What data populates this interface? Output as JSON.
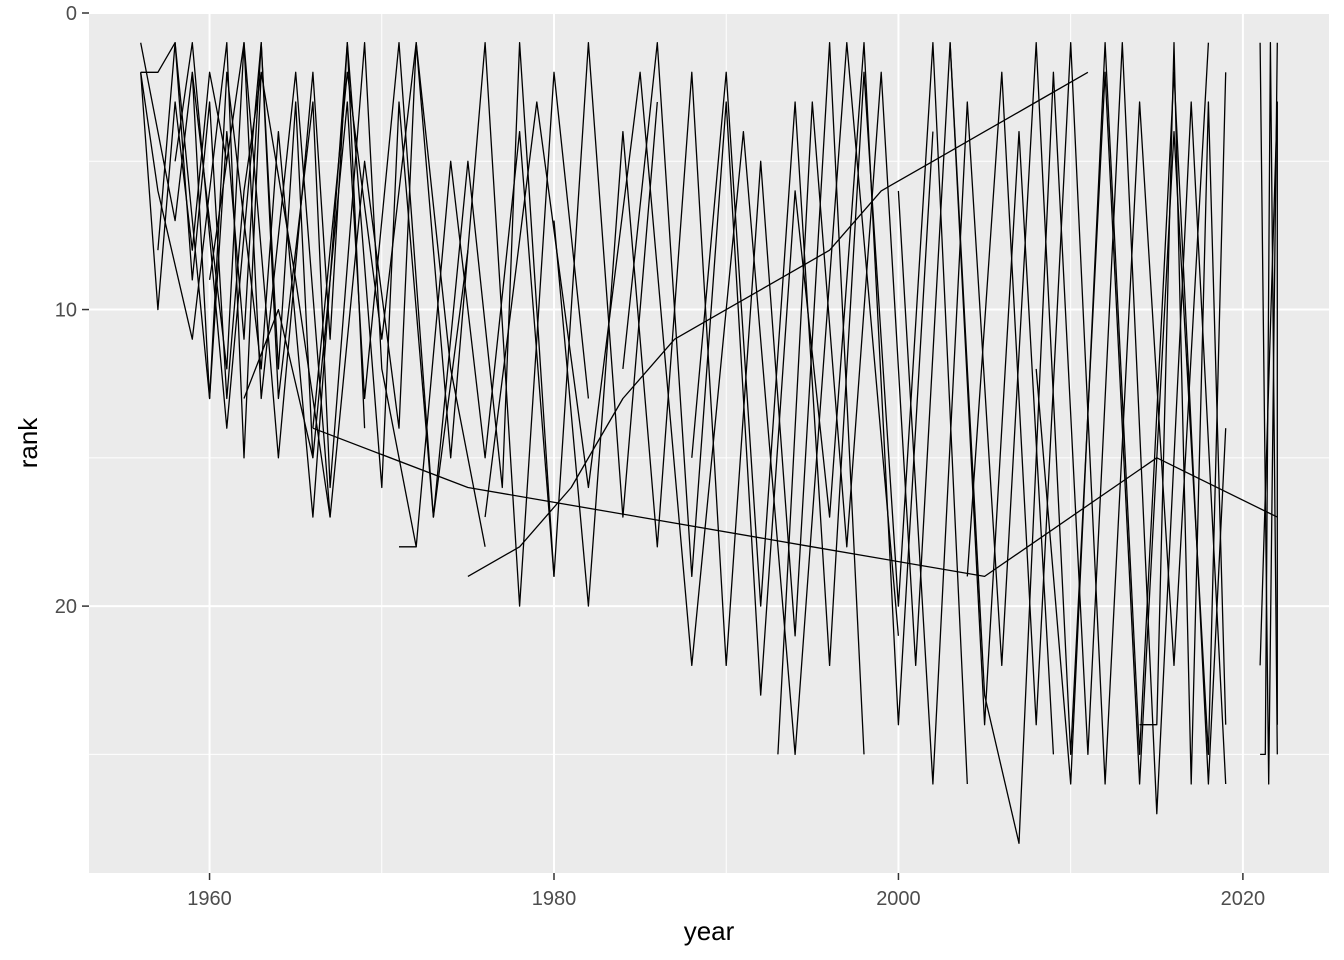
{
  "chart_data": {
    "type": "line",
    "title": "",
    "xlabel": "year",
    "ylabel": "rank",
    "xlim": [
      1953,
      2025
    ],
    "ylim": [
      0,
      29
    ],
    "y_reversed": true,
    "grid": true,
    "panel_background": "#ebebeb",
    "grid_color": "#ffffff",
    "line_color": "#000000",
    "x_ticks": [
      1960,
      1980,
      2000,
      2020
    ],
    "y_ticks": [
      0,
      10,
      20
    ],
    "x_tick_labels": [
      "1960",
      "1980",
      "2000",
      "2020"
    ],
    "y_tick_labels": [
      "0",
      "10",
      "20"
    ],
    "series": [
      {
        "x": [
          1956,
          1957,
          1958,
          1959,
          1960,
          1961
        ],
        "y": [
          2,
          10,
          3,
          8,
          2,
          5
        ]
      },
      {
        "x": [
          1956,
          1957,
          1958,
          1959,
          1960,
          1961,
          1962,
          1963
        ],
        "y": [
          2,
          2,
          1,
          9,
          3,
          13,
          6,
          2
        ]
      },
      {
        "x": [
          1956,
          1958,
          1959,
          1960,
          1961,
          1962,
          1963,
          1964,
          1965,
          1966
        ],
        "y": [
          1,
          7,
          2,
          13,
          4,
          11,
          1,
          12,
          3,
          15
        ]
      },
      {
        "x": [
          1956,
          1957,
          1959,
          1961,
          1962,
          1963,
          1965,
          1967
        ],
        "y": [
          2,
          6,
          11,
          1,
          15,
          2,
          9,
          17
        ]
      },
      {
        "x": [
          1957,
          1958,
          1960,
          1961,
          1963,
          1964,
          1966,
          1968,
          1969
        ],
        "y": [
          8,
          1,
          13,
          2,
          12,
          4,
          17,
          1,
          14
        ]
      },
      {
        "x": [
          1958,
          1959,
          1961,
          1963,
          1964,
          1966,
          1967,
          1969,
          1970,
          1972
        ],
        "y": [
          5,
          1,
          14,
          1,
          13,
          3,
          16,
          1,
          12,
          18
        ]
      },
      {
        "x": [
          1959,
          1961,
          1962,
          1964,
          1966,
          1967,
          1968,
          1970,
          1971,
          1973,
          1975
        ],
        "y": [
          2,
          12,
          1,
          15,
          2,
          11,
          1,
          16,
          3,
          17,
          8
        ]
      },
      {
        "x": [
          1960,
          1962,
          1963,
          1965,
          1967,
          1969,
          1971,
          1972,
          1974,
          1976
        ],
        "y": [
          9,
          1,
          13,
          2,
          17,
          5,
          14,
          1,
          12,
          18
        ]
      },
      {
        "x": [
          1962,
          1964,
          1966,
          1968,
          1969,
          1971,
          1973,
          1975,
          1977,
          1978,
          1980
        ],
        "y": [
          13,
          10,
          15,
          3,
          13,
          1,
          17,
          5,
          16,
          1,
          19
        ]
      },
      {
        "x": [
          1966,
          1968,
          1970,
          1972,
          1974,
          1976,
          1978,
          1980,
          1982
        ],
        "y": [
          14,
          2,
          11,
          1,
          15,
          1,
          20,
          2,
          13
        ]
      },
      {
        "x": [
          1971,
          1972,
          1974,
          1976,
          1978,
          1980,
          1982,
          1984,
          1986
        ],
        "y": [
          18,
          18,
          5,
          15,
          4,
          19,
          1,
          17,
          3
        ]
      },
      {
        "x": [
          1975,
          1978,
          1981,
          1984,
          1987,
          1990,
          1993,
          1996,
          1999,
          2002,
          2005,
          2008,
          2011
        ],
        "y": [
          19,
          18,
          16,
          13,
          11,
          10,
          9,
          8,
          6,
          5,
          4,
          3,
          2
        ]
      },
      {
        "x": [
          1966,
          1975,
          1985,
          1995,
          2005,
          2015,
          2022
        ],
        "y": [
          14,
          16,
          17,
          18,
          19,
          15,
          17
        ]
      },
      {
        "x": [
          1976,
          1979,
          1982,
          1985,
          1988,
          1991,
          1994,
          1997,
          2000
        ],
        "y": [
          17,
          3,
          16,
          2,
          22,
          4,
          25,
          1,
          21
        ]
      },
      {
        "x": [
          1980,
          1982,
          1984,
          1986,
          1988,
          1990,
          1992,
          1994,
          1996,
          1998
        ],
        "y": [
          7,
          20,
          4,
          18,
          2,
          22,
          5,
          21,
          1,
          25
        ]
      },
      {
        "x": [
          1984,
          1986,
          1988,
          1990,
          1992,
          1994,
          1996,
          1998,
          2000,
          2002
        ],
        "y": [
          12,
          1,
          19,
          3,
          23,
          6,
          17,
          1,
          24,
          4
        ]
      },
      {
        "x": [
          1988,
          1990,
          1992,
          1994,
          1996,
          1998,
          2000,
          2002,
          2004
        ],
        "y": [
          15,
          2,
          20,
          3,
          22,
          2,
          20,
          1,
          26
        ]
      },
      {
        "x": [
          1993,
          1995,
          1997,
          1999,
          2001,
          2003,
          2005,
          2007,
          2009
        ],
        "y": [
          25,
          3,
          18,
          2,
          22,
          1,
          24,
          4,
          25
        ]
      },
      {
        "x": [
          2000,
          2002,
          2004,
          2006,
          2008,
          2010,
          2012,
          2014,
          2016,
          2018,
          2019
        ],
        "y": [
          6,
          26,
          3,
          22,
          1,
          25,
          2,
          26,
          4,
          25,
          2
        ]
      },
      {
        "x": [
          2003,
          2005,
          2007,
          2009,
          2011,
          2013,
          2015,
          2017,
          2019
        ],
        "y": [
          1,
          23,
          28,
          2,
          25,
          1,
          27,
          3,
          26
        ]
      },
      {
        "x": [
          2004,
          2006,
          2008,
          2010,
          2012,
          2014,
          2016,
          2018
        ],
        "y": [
          19,
          2,
          24,
          1,
          26,
          3,
          22,
          1
        ]
      },
      {
        "x": [
          2008,
          2010,
          2012,
          2014,
          2016,
          2018,
          2019
        ],
        "y": [
          12,
          26,
          1,
          25,
          2,
          26,
          14
        ]
      },
      {
        "x": [
          2014,
          2015,
          2016,
          2017,
          2018,
          2019
        ],
        "y": [
          24,
          24,
          1,
          26,
          3,
          24
        ]
      },
      {
        "x": [
          2021,
          2021.3,
          2021.6,
          2022
        ],
        "y": [
          25,
          25,
          1,
          25
        ]
      },
      {
        "x": [
          2021,
          2021.5,
          2022
        ],
        "y": [
          1,
          26,
          1
        ]
      },
      {
        "x": [
          2021,
          2022,
          2022
        ],
        "y": [
          22,
          3,
          24
        ]
      }
    ]
  }
}
